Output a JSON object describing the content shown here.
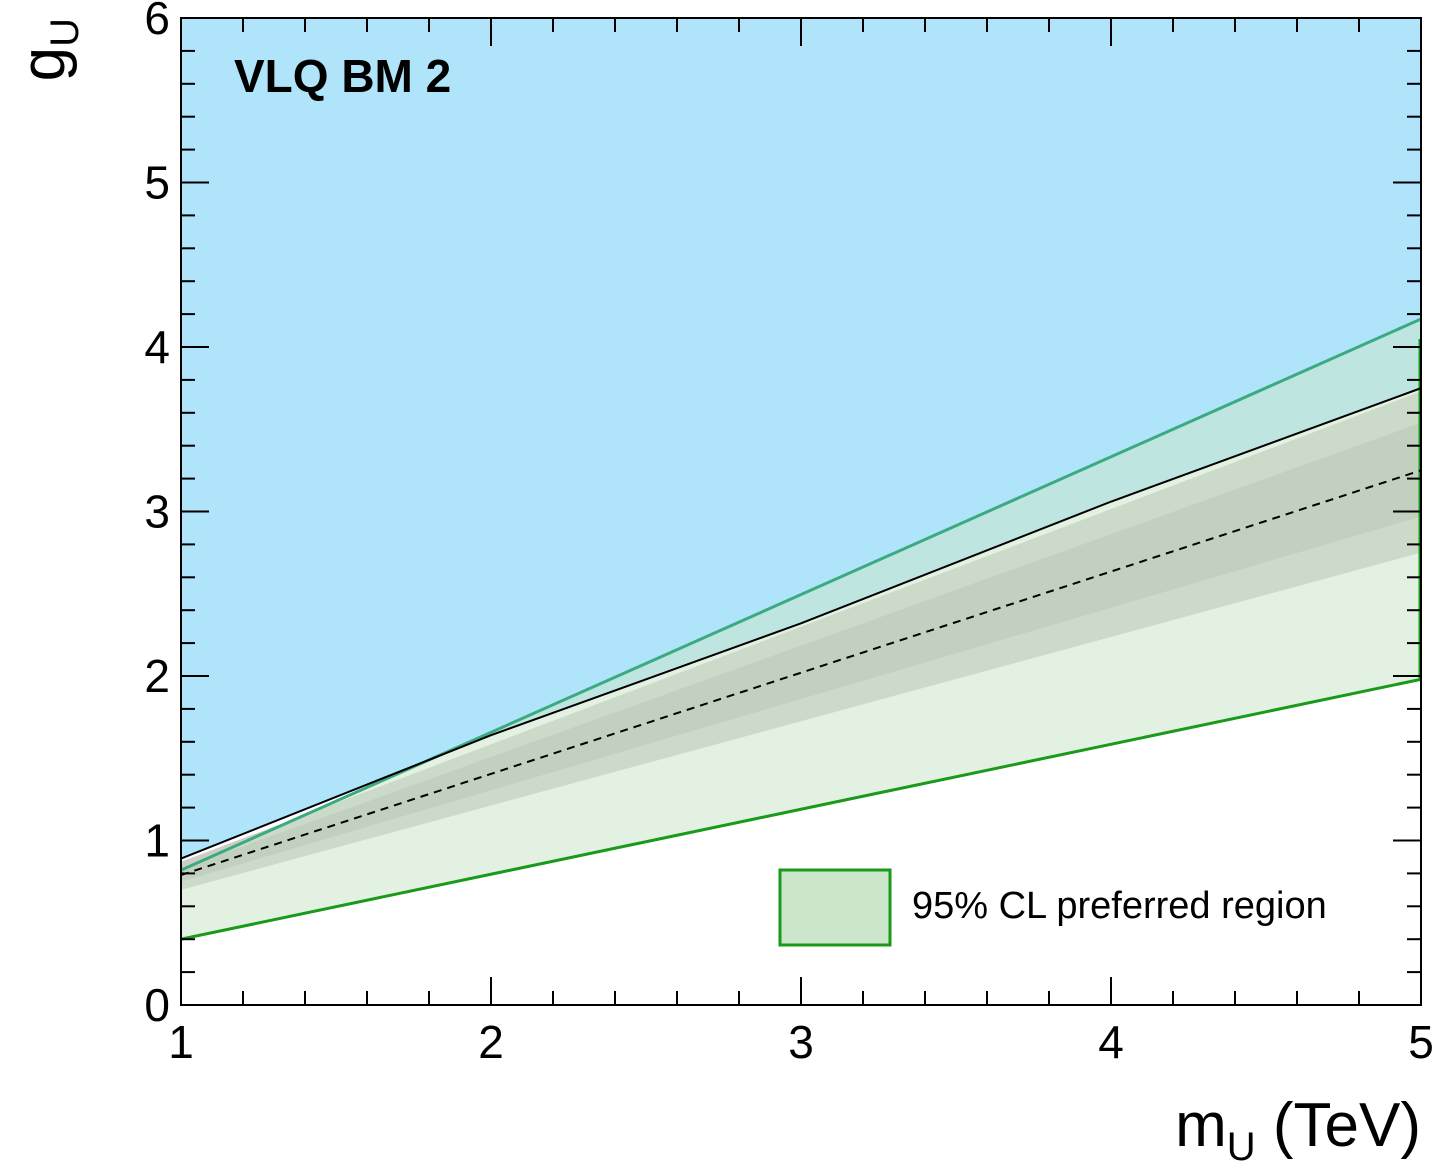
{
  "chart_data": {
    "type": "area",
    "annotation": "VLQ BM 2",
    "xlabel": {
      "main": "m",
      "sub": "U",
      "unit": " (TeV)"
    },
    "ylabel": {
      "main": "g",
      "sub": "U"
    },
    "xlim": [
      1,
      5
    ],
    "ylim": [
      0,
      6
    ],
    "xticks": [
      1,
      2,
      3,
      4,
      5
    ],
    "yticks": [
      0,
      1,
      2,
      3,
      4,
      5,
      6
    ],
    "grid": false,
    "legend": {
      "position": "bottom-right",
      "entries": [
        {
          "label": "95% CL preferred region",
          "color": "#1a9a1a",
          "fill": "#cce6cc"
        }
      ]
    },
    "series": [
      {
        "role": "excluded-region",
        "color": "#b0e4fb",
        "lower": {
          "x": [
            1,
            2,
            3,
            4,
            5
          ],
          "y": [
            0.89,
            1.64,
            2.32,
            3.06,
            3.75
          ]
        },
        "upper": 6
      },
      {
        "role": "expected-2sigma-band",
        "color": "#cdcdc6",
        "x": [
          1,
          5
        ],
        "lower": [
          0.7,
          2.75
        ],
        "upper": [
          0.87,
          3.73
        ]
      },
      {
        "role": "expected-1sigma-band",
        "color": "#b5b9b0",
        "x": [
          1,
          5
        ],
        "lower": [
          0.75,
          2.97
        ],
        "upper": [
          0.83,
          3.54
        ]
      },
      {
        "role": "expected-limit",
        "style": "dashed",
        "color": "#000000",
        "x": [
          1,
          5
        ],
        "y": [
          0.79,
          3.25
        ]
      },
      {
        "role": "observed-limit",
        "style": "solid",
        "color": "#000000",
        "x": [
          1,
          2,
          3,
          4,
          5
        ],
        "y": [
          0.89,
          1.64,
          2.32,
          3.06,
          3.75
        ]
      },
      {
        "role": "preferred-region",
        "color": "#1a9a1a",
        "fill": "#cce6cc",
        "x": [
          1,
          5
        ],
        "lower": [
          0.4,
          1.98
        ],
        "upper": [
          0.82,
          4.17
        ]
      }
    ]
  }
}
